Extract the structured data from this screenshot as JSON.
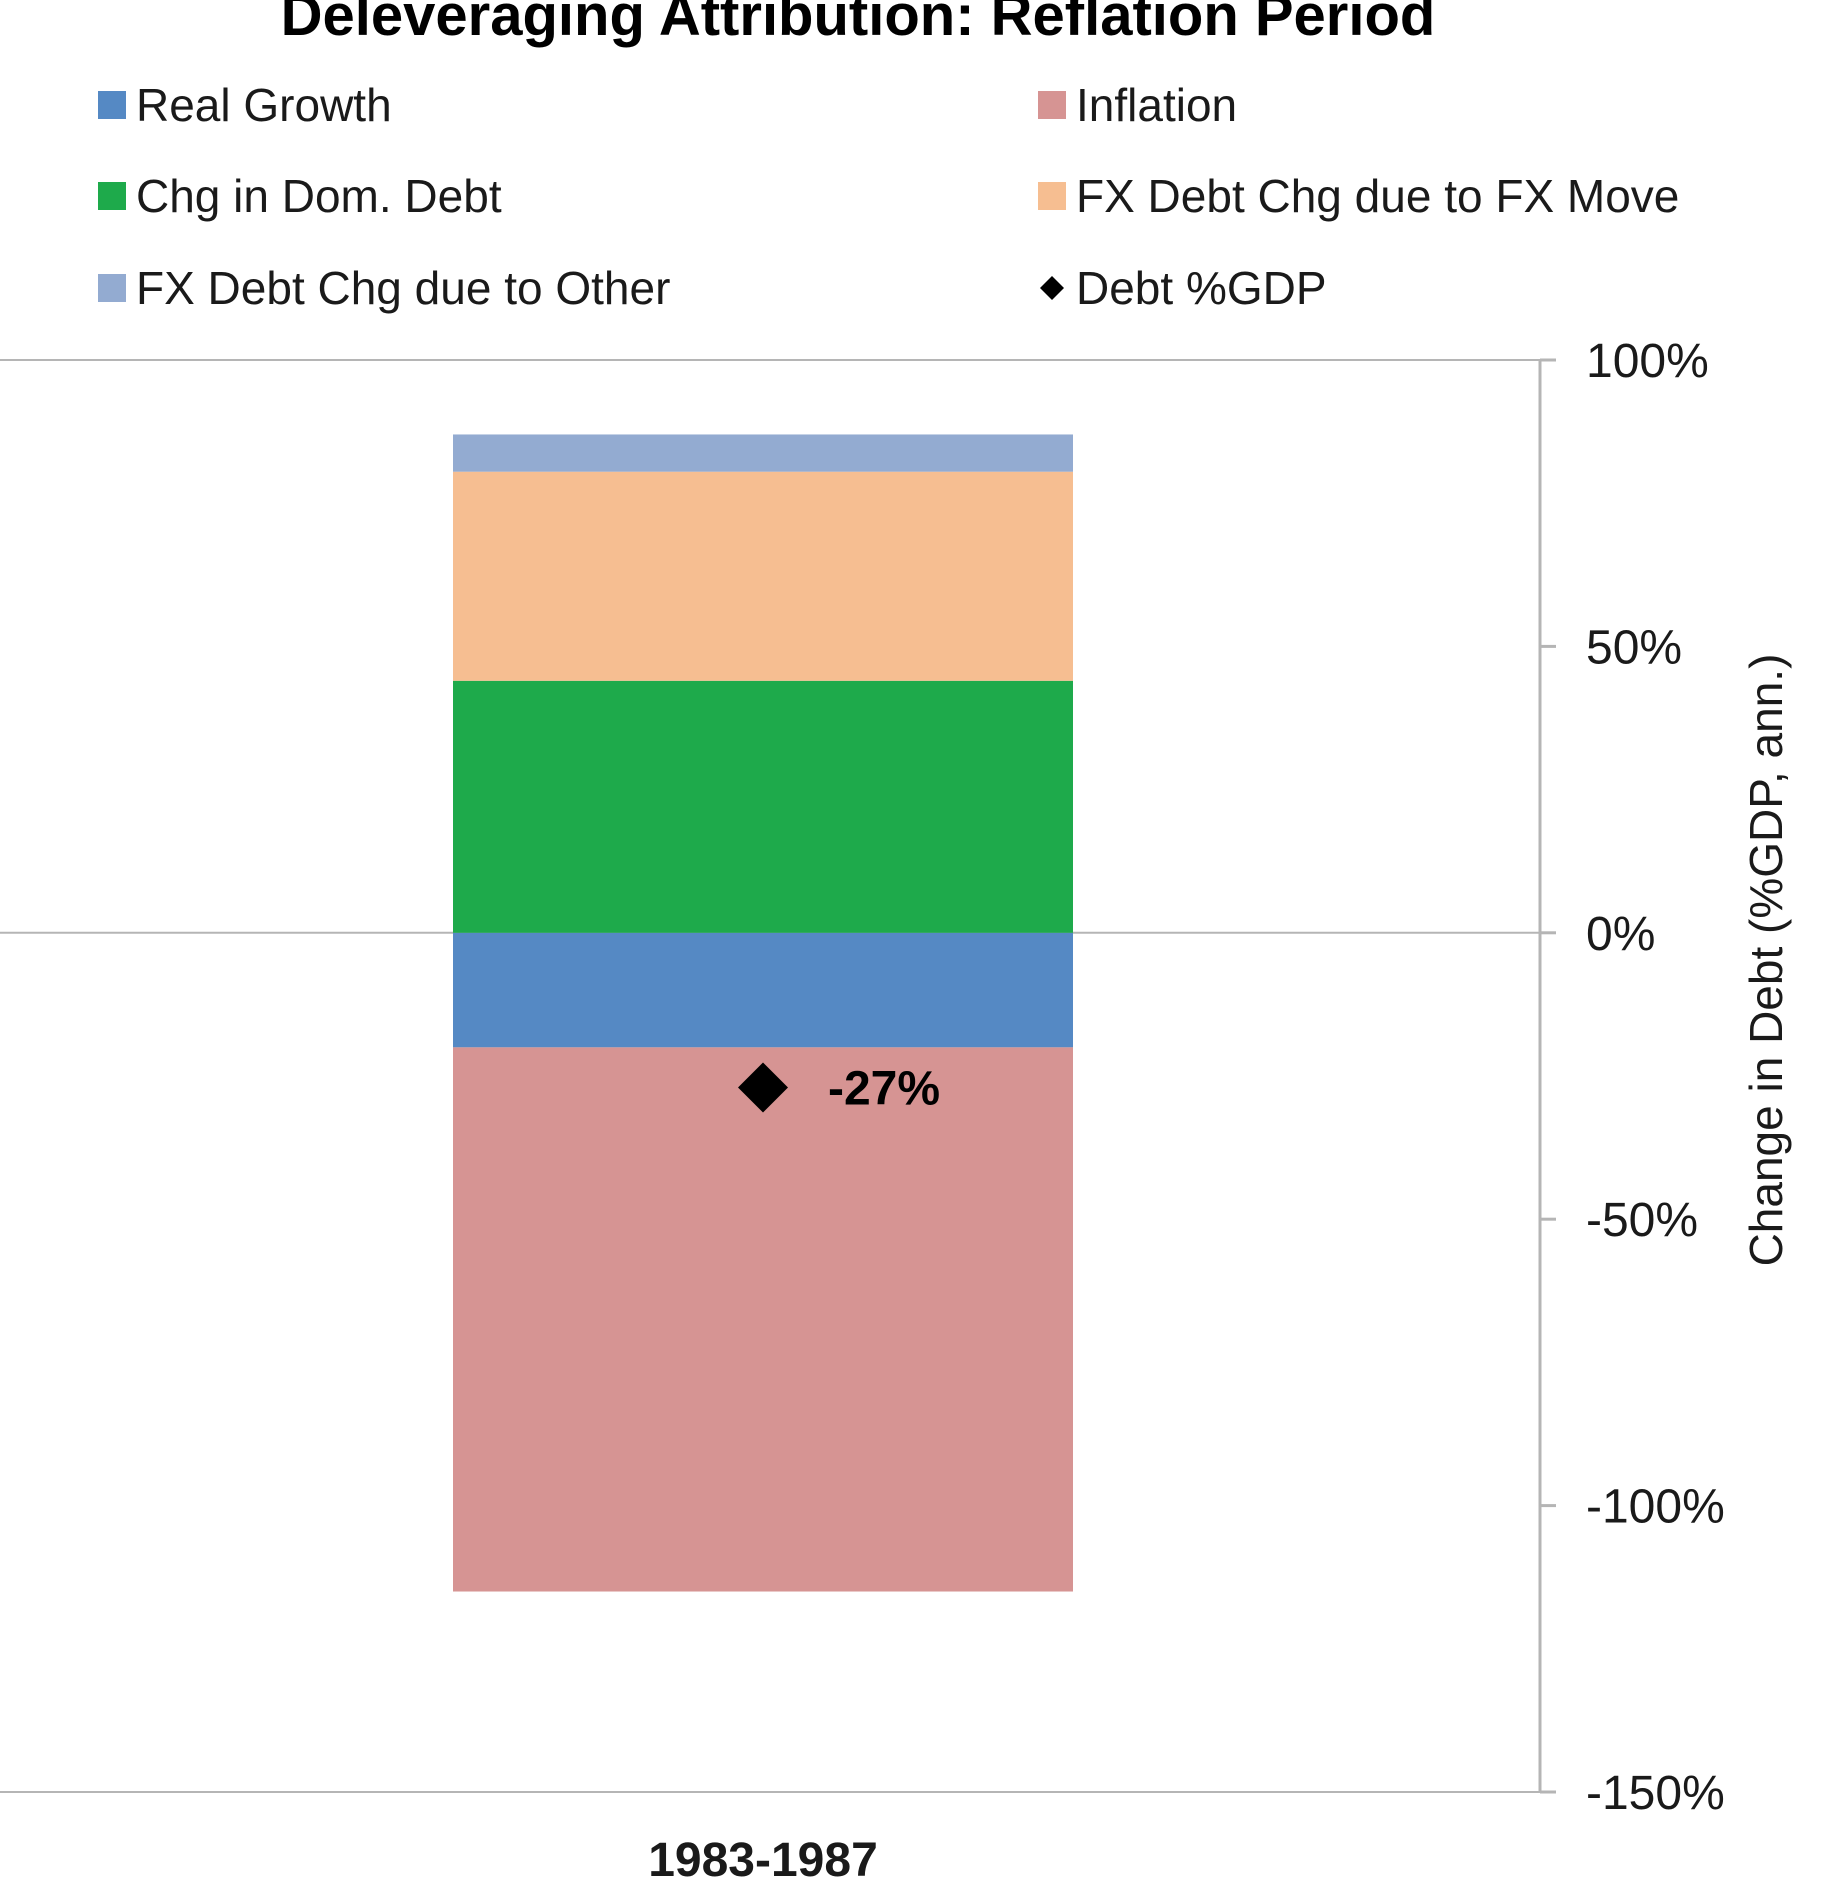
{
  "chart_data": {
    "type": "bar",
    "stacked": true,
    "title": "Deleveraging Attribution: Reflation Period",
    "ylabel": "Change in Debt (%GDP, ann.)",
    "xlabel": "",
    "categories": [
      "1983-1987"
    ],
    "ylim": [
      -150,
      100
    ],
    "yticks": [
      {
        "value": 100,
        "label": "100%"
      },
      {
        "value": 50,
        "label": "50%"
      },
      {
        "value": 0,
        "label": "0%"
      },
      {
        "value": -50,
        "label": "-50%"
      },
      {
        "value": -100,
        "label": "-100%"
      },
      {
        "value": -150,
        "label": "-150%"
      }
    ],
    "grid": "horizontal at 100%, 0% and -150% only",
    "y_axis_position": "right",
    "legend_position": "top",
    "series": [
      {
        "name": "Real Growth",
        "color": "#5589C4",
        "values": [
          -20
        ]
      },
      {
        "name": "Inflation",
        "color": "#D69493",
        "values": [
          -95
        ]
      },
      {
        "name": "Chg in Dom. Debt",
        "color": "#1EAA4B",
        "values": [
          44
        ]
      },
      {
        "name": "FX Debt Chg due to FX Move",
        "color": "#F6BE91",
        "values": [
          36.5
        ]
      },
      {
        "name": "FX Debt Chg due to Other",
        "color": "#93ABD1",
        "values": [
          6.5
        ]
      }
    ],
    "markers": [
      {
        "name": "Debt %GDP",
        "color": "#000000",
        "shape": "diamond",
        "values": [
          -27
        ],
        "labels": [
          "-27%"
        ]
      }
    ],
    "legend": [
      {
        "label": "Real Growth",
        "color": "#5589C4",
        "shape": "square"
      },
      {
        "label": "Inflation",
        "color": "#D69493",
        "shape": "square"
      },
      {
        "label": "Chg in Dom. Debt",
        "color": "#1EAA4B",
        "shape": "square"
      },
      {
        "label": "FX Debt Chg due to FX Move",
        "color": "#F6BE91",
        "shape": "square"
      },
      {
        "label": "FX Debt Chg due to Other",
        "color": "#93ABD1",
        "shape": "square"
      },
      {
        "label": "Debt %GDP",
        "color": "#000000",
        "shape": "diamond"
      }
    ]
  }
}
